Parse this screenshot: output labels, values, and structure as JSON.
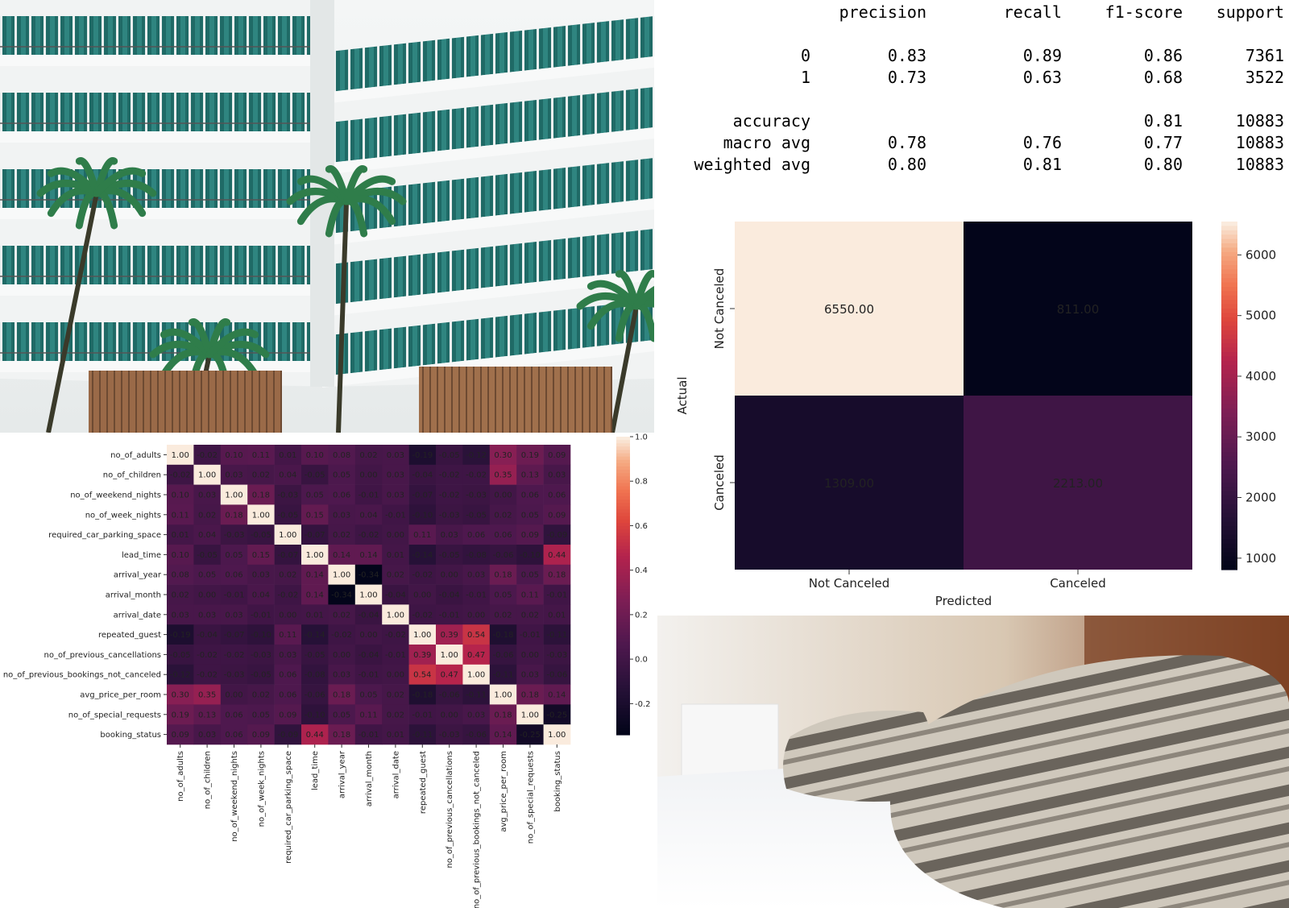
{
  "classification_report": {
    "headers": [
      "precision",
      "recall",
      "f1-score",
      "support"
    ],
    "rows": [
      {
        "label": "0",
        "values": [
          "0.83",
          "0.89",
          "0.86",
          "7361"
        ]
      },
      {
        "label": "1",
        "values": [
          "0.73",
          "0.63",
          "0.68",
          "3522"
        ]
      },
      {
        "label": "accuracy",
        "values": [
          "",
          "",
          "0.81",
          "10883"
        ]
      },
      {
        "label": "macro avg",
        "values": [
          "0.78",
          "0.76",
          "0.77",
          "10883"
        ]
      },
      {
        "label": "weighted avg",
        "values": [
          "0.80",
          "0.81",
          "0.80",
          "10883"
        ]
      }
    ]
  },
  "chart_data": [
    {
      "type": "heatmap",
      "name": "confusion-matrix",
      "xlabel": "Predicted",
      "ylabel": "Actual",
      "x_categories": [
        "Not Canceled",
        "Canceled"
      ],
      "y_categories": [
        "Not Canceled",
        "Canceled"
      ],
      "values": [
        [
          6550,
          811
        ],
        [
          1309,
          2213
        ]
      ],
      "cell_labels": [
        [
          "6550.00",
          "811.00"
        ],
        [
          "1309.00",
          "2213.00"
        ]
      ],
      "colorbar": {
        "range": [
          811,
          6550
        ],
        "ticks": [
          "6000",
          "5000",
          "4000",
          "3000",
          "2000",
          "1000"
        ],
        "tick_values": [
          6000,
          5000,
          4000,
          3000,
          2000,
          1000
        ]
      }
    },
    {
      "type": "heatmap",
      "name": "correlation-matrix",
      "labels": [
        "no_of_adults",
        "no_of_children",
        "no_of_weekend_nights",
        "no_of_week_nights",
        "required_car_parking_space",
        "lead_time",
        "arrival_year",
        "arrival_month",
        "arrival_date",
        "repeated_guest",
        "no_of_previous_cancellations",
        "no_of_previous_bookings_not_canceled",
        "avg_price_per_room",
        "no_of_special_requests",
        "booking_status"
      ],
      "values": [
        [
          1.0,
          -0.02,
          0.1,
          0.11,
          0.01,
          0.1,
          0.08,
          0.02,
          0.03,
          -0.19,
          -0.05,
          -0.12,
          0.3,
          0.19,
          0.09
        ],
        [
          -0.02,
          1.0,
          0.03,
          0.02,
          0.04,
          -0.05,
          0.05,
          -0.0,
          0.03,
          -0.04,
          -0.02,
          -0.02,
          0.35,
          0.13,
          0.03
        ],
        [
          0.1,
          0.03,
          1.0,
          0.18,
          -0.03,
          0.05,
          0.06,
          -0.01,
          0.03,
          -0.07,
          -0.02,
          -0.03,
          -0.0,
          0.06,
          0.06
        ],
        [
          0.11,
          0.02,
          0.18,
          1.0,
          -0.05,
          0.15,
          0.03,
          0.04,
          -0.01,
          -0.1,
          -0.03,
          -0.05,
          0.02,
          0.05,
          0.09
        ],
        [
          0.01,
          0.04,
          -0.03,
          -0.05,
          1.0,
          -0.07,
          0.02,
          -0.02,
          -0.0,
          0.11,
          0.03,
          0.06,
          0.06,
          0.09,
          -0.09
        ],
        [
          0.1,
          -0.05,
          0.05,
          0.15,
          -0.07,
          1.0,
          0.14,
          0.14,
          0.01,
          -0.14,
          -0.05,
          -0.08,
          -0.06,
          -0.1,
          0.44
        ],
        [
          0.08,
          0.05,
          0.06,
          0.03,
          0.02,
          0.14,
          1.0,
          -0.34,
          0.02,
          -0.02,
          0.0,
          0.03,
          0.18,
          0.05,
          0.18
        ],
        [
          0.02,
          -0.0,
          -0.01,
          0.04,
          -0.02,
          0.14,
          -0.34,
          1.0,
          -0.04,
          0.0,
          -0.04,
          -0.01,
          0.05,
          0.11,
          -0.01
        ],
        [
          0.03,
          0.03,
          0.03,
          -0.01,
          -0.0,
          0.01,
          0.02,
          -0.04,
          1.0,
          -0.02,
          -0.01,
          -0.0,
          0.02,
          0.02,
          0.01
        ],
        [
          -0.19,
          -0.04,
          -0.07,
          -0.1,
          0.11,
          -0.14,
          -0.02,
          0.0,
          -0.02,
          1.0,
          0.39,
          0.54,
          -0.18,
          -0.01,
          -0.11
        ],
        [
          -0.05,
          -0.02,
          -0.02,
          -0.03,
          0.03,
          -0.05,
          0.0,
          -0.04,
          -0.01,
          0.39,
          1.0,
          0.47,
          -0.06,
          -0.0,
          -0.03
        ],
        [
          -0.12,
          -0.02,
          -0.03,
          -0.05,
          0.06,
          -0.08,
          0.03,
          -0.01,
          -0.0,
          0.54,
          0.47,
          1.0,
          -0.11,
          0.03,
          -0.06
        ],
        [
          0.3,
          0.35,
          -0.0,
          0.02,
          0.06,
          -0.06,
          0.18,
          0.05,
          0.02,
          -0.18,
          -0.06,
          -0.11,
          1.0,
          0.18,
          0.14
        ],
        [
          0.19,
          0.13,
          0.06,
          0.05,
          0.09,
          -0.1,
          0.05,
          0.11,
          0.02,
          -0.01,
          -0.0,
          0.03,
          0.18,
          1.0,
          -0.25
        ],
        [
          0.09,
          0.03,
          0.06,
          0.09,
          -0.09,
          0.44,
          0.18,
          -0.01,
          0.01,
          -0.11,
          -0.03,
          -0.06,
          0.14,
          -0.25,
          1.0
        ]
      ],
      "colorbar": {
        "range": [
          -0.34,
          1.0
        ],
        "ticks": [
          "1.0",
          "0.8",
          "0.6",
          "0.4",
          "0.2",
          "0.0",
          "-0.2"
        ],
        "tick_values": [
          1.0,
          0.8,
          0.6,
          0.4,
          0.2,
          0.0,
          -0.2
        ]
      }
    }
  ],
  "photos": [
    {
      "name": "hotel-courtyard-photo",
      "subject": "hotel building with balconies and palm trees"
    },
    {
      "name": "bed-pillows-photo",
      "subject": "striped pillows on a white bed"
    }
  ],
  "colors": {
    "rocket_dark": "#03051a",
    "rocket_light": "#faebdd"
  }
}
